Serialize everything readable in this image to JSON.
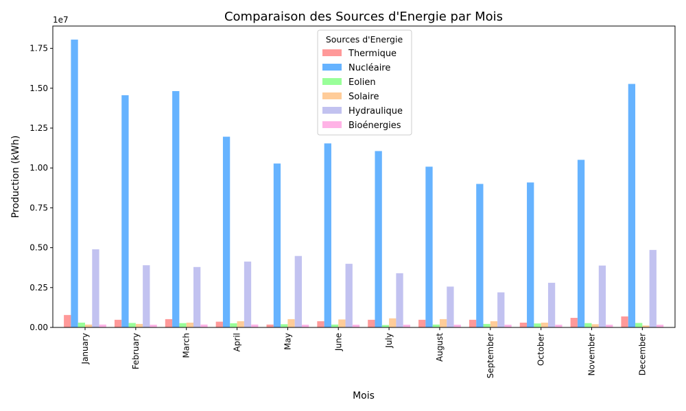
{
  "chart_data": {
    "type": "bar",
    "title": "Comparaison des Sources d'Energie par Mois",
    "xlabel": "Mois",
    "ylabel": "Production (kWh)",
    "y_multiplier": "1e7",
    "ylim": [
      0,
      18900000
    ],
    "yticks": [
      0,
      2500000,
      5000000,
      7500000,
      10000000,
      12500000,
      15000000,
      17500000
    ],
    "ytick_labels": [
      "0.00",
      "0.25",
      "0.50",
      "0.75",
      "1.00",
      "1.25",
      "1.50",
      "1.75"
    ],
    "grid": false,
    "legend_title": "Sources d'Energie",
    "legend_position": "upper-center",
    "categories": [
      "January",
      "February",
      "March",
      "April",
      "May",
      "June",
      "July",
      "August",
      "September",
      "October",
      "November",
      "December"
    ],
    "series": [
      {
        "name": "Thermique",
        "color": "#ff9999",
        "values": [
          780000,
          480000,
          520000,
          360000,
          180000,
          390000,
          480000,
          480000,
          480000,
          300000,
          600000,
          690000
        ]
      },
      {
        "name": "Nucléaire",
        "color": "#66b3ff",
        "values": [
          18050000,
          14560000,
          14820000,
          11960000,
          10280000,
          11540000,
          11060000,
          10080000,
          9000000,
          9090000,
          10510000,
          15270000
        ]
      },
      {
        "name": "Eolien",
        "color": "#99ff99",
        "values": [
          300000,
          280000,
          270000,
          260000,
          200000,
          180000,
          150000,
          180000,
          220000,
          250000,
          270000,
          280000
        ]
      },
      {
        "name": "Solaire",
        "color": "#ffcc99",
        "values": [
          180000,
          220000,
          300000,
          390000,
          520000,
          500000,
          570000,
          520000,
          390000,
          300000,
          200000,
          120000
        ]
      },
      {
        "name": "Hydraulique",
        "color": "#c2c2f0",
        "values": [
          4900000,
          3900000,
          3790000,
          4130000,
          4480000,
          3990000,
          3400000,
          2560000,
          2200000,
          2800000,
          3880000,
          4860000
        ]
      },
      {
        "name": "Bioénergies",
        "color": "#ffb3e6",
        "values": [
          180000,
          170000,
          180000,
          180000,
          170000,
          170000,
          170000,
          170000,
          170000,
          170000,
          170000,
          170000
        ]
      }
    ]
  }
}
